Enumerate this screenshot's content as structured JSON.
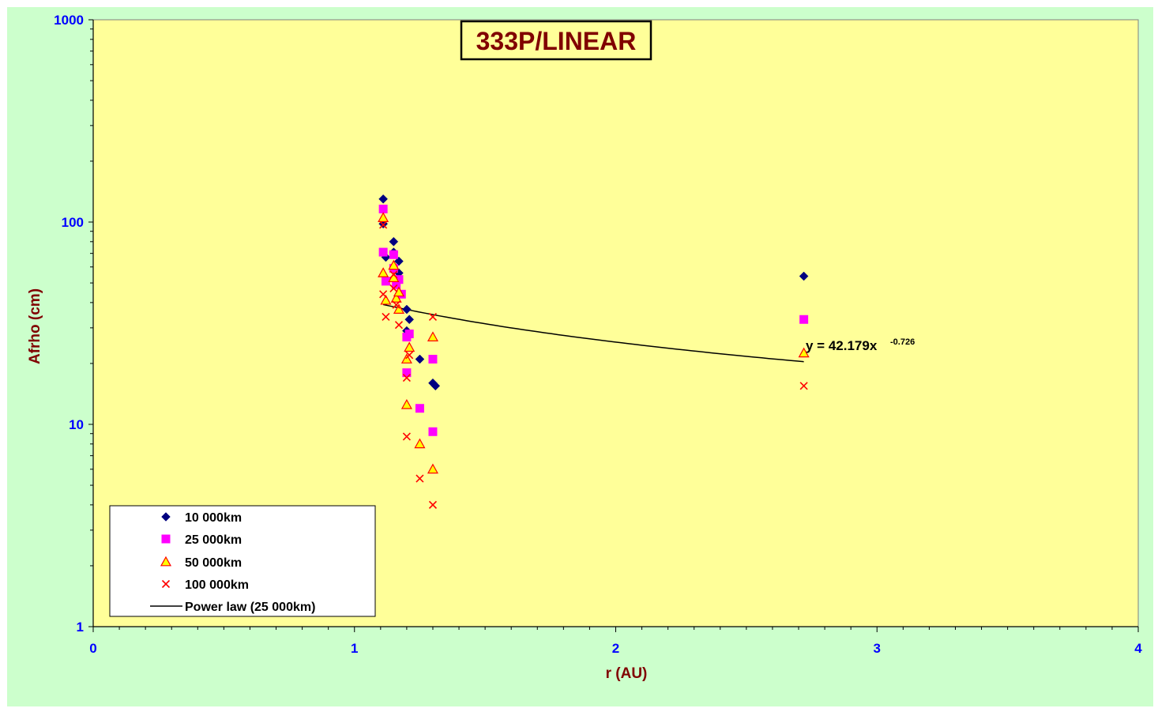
{
  "chart_data": {
    "type": "scatter",
    "title": "333P/LINEAR",
    "xlabel": "r (AU)",
    "ylabel": "Afrho (cm)",
    "xlim": [
      0,
      4
    ],
    "ylim": [
      1,
      1000
    ],
    "yscale": "log",
    "x_ticks": [
      "0",
      "1",
      "2",
      "3",
      "4"
    ],
    "y_ticks": [
      "1",
      "10",
      "100",
      "1000"
    ],
    "grid": false,
    "legend_position": "bottom-left",
    "colors": {
      "outer_background": "#ccffcc",
      "plot_background": "#ffff99",
      "series_10000": "#000080",
      "series_25000": "#ff00ff",
      "series_50000_fill": "#ffff00",
      "series_50000_edge": "#ff0000",
      "series_100000": "#ff0000",
      "trend": "#000000",
      "axis_text": "#0000ff",
      "title_text": "#800000"
    },
    "series": [
      {
        "name": "10 000km",
        "marker": "diamond",
        "points": [
          [
            1.11,
            130
          ],
          [
            1.11,
            98
          ],
          [
            1.12,
            67
          ],
          [
            1.15,
            80
          ],
          [
            1.15,
            71
          ],
          [
            1.17,
            64
          ],
          [
            1.17,
            56
          ],
          [
            1.2,
            37
          ],
          [
            1.2,
            29
          ],
          [
            1.21,
            33
          ],
          [
            1.25,
            21
          ],
          [
            1.3,
            16
          ],
          [
            1.31,
            15.5
          ],
          [
            2.72,
            54
          ]
        ]
      },
      {
        "name": "25 000km",
        "marker": "square",
        "points": [
          [
            1.11,
            116
          ],
          [
            1.11,
            71
          ],
          [
            1.12,
            51
          ],
          [
            1.15,
            69
          ],
          [
            1.15,
            59
          ],
          [
            1.16,
            49
          ],
          [
            1.17,
            52
          ],
          [
            1.18,
            44
          ],
          [
            1.2,
            27
          ],
          [
            1.2,
            18
          ],
          [
            1.21,
            28
          ],
          [
            1.25,
            12
          ],
          [
            1.3,
            9.2
          ],
          [
            1.3,
            21
          ],
          [
            2.72,
            33
          ]
        ]
      },
      {
        "name": "50 000km",
        "marker": "triangle",
        "points": [
          [
            1.11,
            105
          ],
          [
            1.11,
            56
          ],
          [
            1.12,
            41
          ],
          [
            1.15,
            61
          ],
          [
            1.15,
            53
          ],
          [
            1.16,
            42
          ],
          [
            1.17,
            45
          ],
          [
            1.17,
            37
          ],
          [
            1.2,
            21
          ],
          [
            1.2,
            12.5
          ],
          [
            1.21,
            24
          ],
          [
            1.25,
            8
          ],
          [
            1.3,
            6
          ],
          [
            1.3,
            27
          ],
          [
            2.72,
            22.5
          ]
        ]
      },
      {
        "name": "100 000km",
        "marker": "x",
        "points": [
          [
            1.11,
            97
          ],
          [
            1.11,
            44
          ],
          [
            1.12,
            34
          ],
          [
            1.15,
            55
          ],
          [
            1.15,
            47
          ],
          [
            1.16,
            39
          ],
          [
            1.17,
            31
          ],
          [
            1.2,
            17
          ],
          [
            1.2,
            8.7
          ],
          [
            1.21,
            22
          ],
          [
            1.25,
            5.4
          ],
          [
            1.3,
            4
          ],
          [
            1.3,
            34
          ],
          [
            2.72,
            15.5
          ]
        ]
      }
    ],
    "trendline": {
      "name": "Power law (25 000km)",
      "a": 42.179,
      "b": -0.726,
      "x_range": [
        1.11,
        2.72
      ],
      "equation_prefix": "y = 42.179x",
      "equation_exponent": "-0.726"
    }
  }
}
